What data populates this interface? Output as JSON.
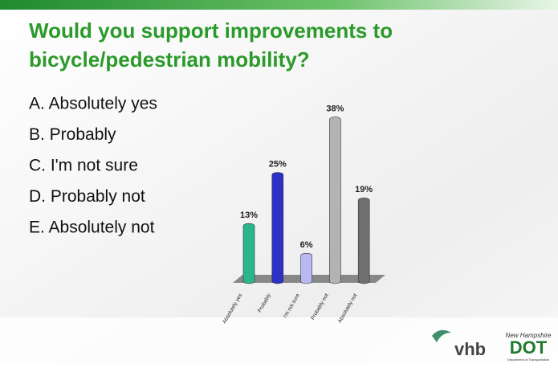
{
  "header": {
    "title": [
      "Would you support improvements to",
      "bicycle/pedestrian mobility?"
    ]
  },
  "options": [
    "A. Absolutely yes",
    "B. Probably",
    "C. I'm not sure",
    "D. Probably not",
    "E. Absolutely not"
  ],
  "chart_data": {
    "type": "bar",
    "categories": [
      "Absolutely yes",
      "Probably",
      "I'm not sure",
      "Probably not",
      "Absolutely not"
    ],
    "values": [
      13,
      25,
      6,
      38,
      19
    ],
    "value_labels": [
      "13%",
      "25%",
      "6%",
      "38%",
      "19%"
    ],
    "colors": [
      "#2bb58a",
      "#2d31c4",
      "#b9b9f2",
      "#b3b3b3",
      "#6f6f6f"
    ]
  },
  "logos": {
    "vhb": "vhb",
    "dot_top": "New Hampshire",
    "dot": "DOT",
    "dot_bottom": "Department of Transportation"
  }
}
